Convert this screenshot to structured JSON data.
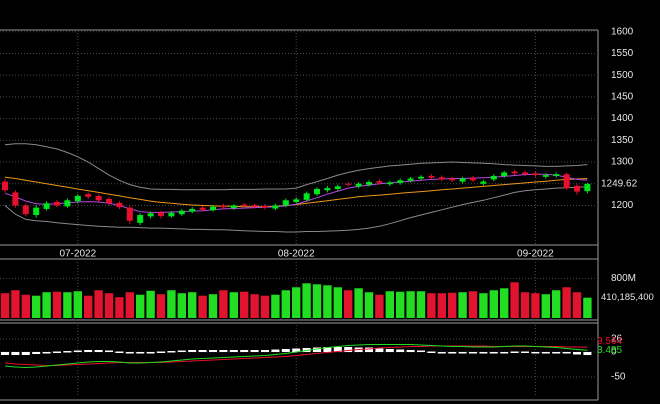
{
  "chart_data": [
    {
      "type": "candlestick",
      "categories": [
        null,
        null,
        null,
        null,
        null,
        null,
        null,
        "07-2022",
        null,
        null,
        null,
        null,
        null,
        null,
        null,
        null,
        null,
        null,
        null,
        null,
        null,
        null,
        null,
        null,
        null,
        null,
        null,
        null,
        "08-2022",
        null,
        null,
        null,
        null,
        null,
        null,
        null,
        null,
        null,
        null,
        null,
        null,
        null,
        null,
        null,
        null,
        null,
        null,
        null,
        null,
        null,
        null,
        "09-2022",
        null,
        null,
        null,
        null,
        null
      ],
      "open": [
        1255,
        1230,
        1200,
        1178,
        1192,
        1208,
        1198,
        1210,
        1226,
        1222,
        1215,
        1206,
        1195,
        1160,
        1175,
        1184,
        1175,
        1180,
        1186,
        1195,
        1189,
        1200,
        1194,
        1202,
        1201,
        1199,
        1193,
        1200,
        1208,
        1213,
        1226,
        1235,
        1238,
        1250,
        1244,
        1248,
        1256,
        1249,
        1252,
        1257,
        1262,
        1268,
        1265,
        1262,
        1255,
        1264,
        1250,
        1260,
        1268,
        1278,
        1276,
        1274,
        1266,
        1268,
        1272,
        1245,
        1233
      ],
      "high": [
        1260,
        1235,
        1205,
        1200,
        1210,
        1213,
        1216,
        1226,
        1230,
        1226,
        1219,
        1210,
        1199,
        1182,
        1186,
        1188,
        1187,
        1192,
        1196,
        1199,
        1201,
        1204,
        1203,
        1206,
        1204,
        1203,
        1204,
        1216,
        1219,
        1232,
        1242,
        1245,
        1248,
        1254,
        1254,
        1258,
        1260,
        1257,
        1262,
        1266,
        1270,
        1272,
        1269,
        1266,
        1266,
        1268,
        1259,
        1272,
        1280,
        1282,
        1280,
        1278,
        1274,
        1276,
        1276,
        1249,
        1252
      ],
      "low": [
        1230,
        1195,
        1175,
        1172,
        1188,
        1196,
        1194,
        1205,
        1215,
        1208,
        1200,
        1192,
        1158,
        1155,
        1170,
        1170,
        1172,
        1176,
        1182,
        1186,
        1186,
        1192,
        1190,
        1195,
        1193,
        1191,
        1189,
        1196,
        1204,
        1209,
        1222,
        1230,
        1234,
        1244,
        1240,
        1244,
        1248,
        1245,
        1248,
        1253,
        1258,
        1260,
        1256,
        1254,
        1251,
        1254,
        1246,
        1256,
        1264,
        1270,
        1268,
        1266,
        1262,
        1264,
        1236,
        1225,
        1228
      ],
      "close": [
        1235,
        1200,
        1180,
        1195,
        1205,
        1200,
        1212,
        1222,
        1220,
        1212,
        1205,
        1196,
        1165,
        1178,
        1182,
        1176,
        1183,
        1188,
        1192,
        1190,
        1197,
        1196,
        1200,
        1199,
        1197,
        1195,
        1200,
        1212,
        1214,
        1228,
        1238,
        1240,
        1244,
        1248,
        1250,
        1254,
        1252,
        1253,
        1258,
        1262,
        1266,
        1264,
        1260,
        1258,
        1262,
        1258,
        1255,
        1268,
        1276,
        1274,
        1272,
        1270,
        1270,
        1272,
        1240,
        1232,
        1249.62
      ],
      "up_color": "#00e61e",
      "down_color": "#e8102e",
      "series": [
        {
          "color": "#8a8a8a",
          "values": [
            1340,
            1342,
            1342,
            1340,
            1335,
            1330,
            1322,
            1312,
            1300,
            1285,
            1270,
            1258,
            1248,
            1242,
            1238,
            1237,
            1237,
            1236,
            1236,
            1236,
            1236,
            1236,
            1237,
            1237,
            1237,
            1238,
            1238,
            1238,
            1240,
            1248,
            1255,
            1262,
            1270,
            1276,
            1281,
            1285,
            1288,
            1291,
            1293,
            1295,
            1297,
            1298,
            1299,
            1300,
            1299,
            1298,
            1297,
            1296,
            1294,
            1293,
            1292,
            1291,
            1290,
            1290,
            1291,
            1292,
            1294
          ]
        },
        {
          "color": "#8a8a8a",
          "values": [
            1200,
            1180,
            1168,
            1165,
            1163,
            1160,
            1158,
            1156,
            1154,
            1152,
            1151,
            1150,
            1150,
            1149,
            1148,
            1148,
            1147,
            1146,
            1145,
            1145,
            1144,
            1144,
            1143,
            1142,
            1141,
            1140,
            1140,
            1139,
            1139,
            1140,
            1140,
            1141,
            1142,
            1143,
            1145,
            1148,
            1152,
            1158,
            1165,
            1172,
            1178,
            1184,
            1190,
            1196,
            1202,
            1207,
            1212,
            1218,
            1224,
            1230,
            1234,
            1236,
            1238,
            1240,
            1241,
            1242,
            1243
          ]
        },
        {
          "color": "#f0961a",
          "values": [
            1265,
            1262,
            1258,
            1254,
            1250,
            1246,
            1242,
            1238,
            1234,
            1230,
            1226,
            1222,
            1218,
            1214,
            1210,
            1207,
            1205,
            1203,
            1201,
            1200,
            1199,
            1198,
            1198,
            1197,
            1197,
            1197,
            1198,
            1200,
            1202,
            1205,
            1208,
            1211,
            1214,
            1217,
            1220,
            1222,
            1224,
            1226,
            1228,
            1230,
            1232,
            1234,
            1236,
            1238,
            1240,
            1242,
            1244,
            1246,
            1248,
            1250,
            1252,
            1254,
            1256,
            1258,
            1260,
            1261,
            1262
          ]
        },
        {
          "color": "#b44ae6",
          "values": [
            1228,
            1220,
            1210,
            1204,
            1203,
            1204,
            1206,
            1208,
            1209,
            1208,
            1205,
            1200,
            1192,
            1186,
            1184,
            1184,
            1185,
            1186,
            1187,
            1188,
            1190,
            1192,
            1193,
            1194,
            1195,
            1196,
            1197,
            1199,
            1203,
            1210,
            1218,
            1226,
            1233,
            1240,
            1244,
            1247,
            1250,
            1252,
            1254,
            1256,
            1258,
            1260,
            1261,
            1262,
            1262,
            1263,
            1264,
            1265,
            1267,
            1269,
            1271,
            1272,
            1272,
            1270,
            1265,
            1260,
            1258
          ]
        }
      ],
      "ylim": [
        1109,
        1604
      ],
      "yticks": [
        1200,
        1250,
        1300,
        1350,
        1400,
        1450,
        1500,
        1550,
        1600
      ],
      "grid": true,
      "last_label": 1249.62
    },
    {
      "type": "bar",
      "values": [
        500000000,
        560000000,
        470000000,
        450000000,
        520000000,
        530000000,
        520000000,
        540000000,
        450000000,
        560000000,
        500000000,
        420000000,
        520000000,
        470000000,
        550000000,
        480000000,
        560000000,
        500000000,
        520000000,
        450000000,
        480000000,
        560000000,
        520000000,
        530000000,
        480000000,
        450000000,
        470000000,
        560000000,
        620000000,
        700000000,
        680000000,
        660000000,
        620000000,
        560000000,
        600000000,
        520000000,
        470000000,
        540000000,
        530000000,
        540000000,
        540000000,
        500000000,
        500000000,
        510000000,
        520000000,
        540000000,
        500000000,
        560000000,
        600000000,
        720000000,
        520000000,
        500000000,
        480000000,
        560000000,
        620000000,
        520000000,
        410185400
      ],
      "up_color": "#22dd22",
      "down_color": "#e0142e",
      "ylim": [
        0,
        1130000000
      ],
      "yticks": [
        {
          "value": 800000000,
          "label": "800M"
        }
      ],
      "last_label": {
        "value": 410185400,
        "label": "410,185,400"
      }
    },
    {
      "type": "line",
      "series": [
        {
          "type": "bar",
          "color": "#ffffff",
          "values": [
            -6,
            -6,
            -6,
            -4,
            -1,
            1,
            2,
            3,
            4,
            4,
            3,
            1,
            -1,
            -1,
            0,
            1,
            2,
            3,
            4,
            4,
            4,
            4,
            4,
            4,
            4,
            4,
            5,
            6,
            7,
            8,
            9,
            10,
            10,
            10,
            9,
            9,
            7,
            6,
            5,
            4,
            3,
            1,
            0,
            -1,
            -1,
            -2,
            -2,
            -1,
            0,
            1,
            1,
            0,
            -1,
            -2,
            -3,
            -5,
            -6.079
          ]
        },
        {
          "color": "#e8102e",
          "values": [
            -22,
            -24,
            -25,
            -26,
            -27,
            -27,
            -26,
            -25,
            -24,
            -23,
            -22,
            -21,
            -21,
            -21,
            -21,
            -21,
            -20,
            -19,
            -18,
            -17,
            -16,
            -15,
            -14,
            -13,
            -12,
            -11,
            -10,
            -9,
            -7,
            -5,
            -3,
            -1,
            1,
            3,
            5,
            6,
            8,
            9,
            10,
            11,
            11,
            12,
            12,
            12,
            12,
            12,
            12,
            11,
            11,
            11,
            11,
            11,
            11,
            11,
            10,
            10,
            9.564
          ]
        },
        {
          "color": "#22dd22",
          "values": [
            -28,
            -30,
            -31,
            -30,
            -28,
            -26,
            -24,
            -22,
            -20,
            -19,
            -19,
            -20,
            -22,
            -22,
            -21,
            -20,
            -18,
            -16,
            -14,
            -13,
            -12,
            -11,
            -10,
            -9,
            -8,
            -7,
            -5,
            -3,
            0,
            3,
            6,
            9,
            11,
            13,
            14,
            15,
            15,
            15,
            15,
            15,
            14,
            13,
            12,
            11,
            11,
            10,
            10,
            10,
            11,
            12,
            12,
            11,
            10,
            9,
            7,
            5,
            3.485
          ]
        }
      ],
      "ylim": [
        -86,
        54
      ],
      "yticks": [
        -50,
        0,
        26
      ]
    }
  ]
}
